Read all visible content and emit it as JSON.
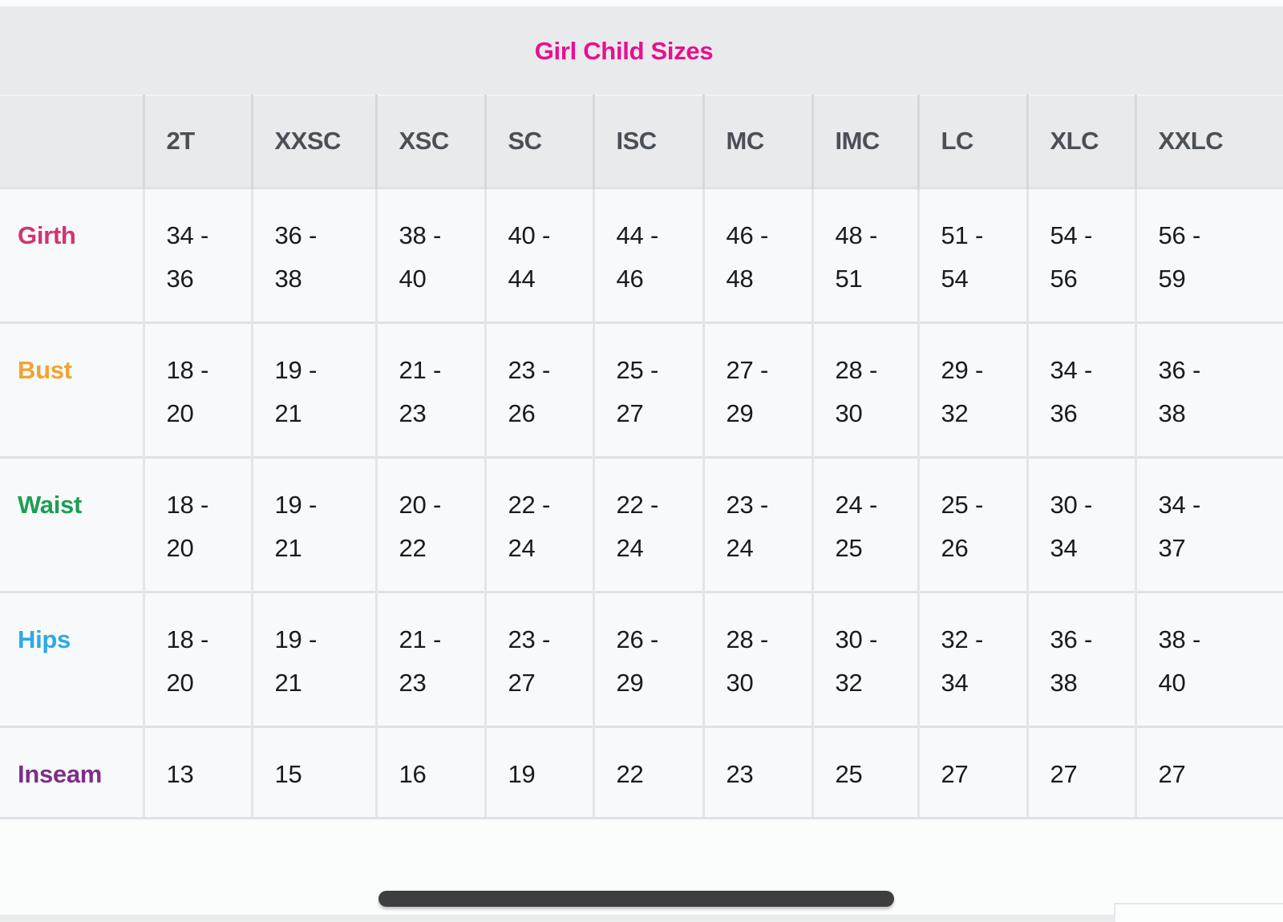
{
  "table": {
    "title": "Girl Child Sizes",
    "title_color": "#e71090",
    "columns": [
      "2T",
      "XXSC",
      "XSC",
      "SC",
      "ISC",
      "MC",
      "IMC",
      "LC",
      "XLC",
      "XXLC"
    ],
    "rows": [
      {
        "label": "Girth",
        "color": "#d13472",
        "values": [
          "34 - 36",
          "36 - 38",
          "38 - 40",
          "40 - 44",
          "44 - 46",
          "46 - 48",
          "48 - 51",
          "51 - 54",
          "54 - 56",
          "56 - 59"
        ]
      },
      {
        "label": "Bust",
        "color": "#f0a332",
        "values": [
          "18 - 20",
          "19 - 21",
          "21 - 23",
          "23 - 26",
          "25 - 27",
          "27 - 29",
          "28 - 30",
          "29 - 32",
          "34 - 36",
          "36 - 38"
        ]
      },
      {
        "label": "Waist",
        "color": "#1d9e52",
        "values": [
          "18 - 20",
          "19 - 21",
          "20 - 22",
          "22 - 24",
          "22 - 24",
          "23 - 24",
          "24 - 25",
          "25 - 26",
          "30 - 34",
          "34 - 37"
        ]
      },
      {
        "label": "Hips",
        "color": "#2aabe3",
        "values": [
          "18 - 20",
          "19 - 21",
          "21 - 23",
          "23 - 27",
          "26 - 29",
          "28 - 30",
          "30 - 32",
          "32 - 34",
          "36 - 38",
          "38 - 40"
        ]
      },
      {
        "label": "Inseam",
        "color": "#7d2e88",
        "values": [
          "13",
          "15",
          "16",
          "19",
          "22",
          "23",
          "25",
          "27",
          "27",
          "27"
        ]
      }
    ]
  },
  "colors": {
    "header_band": "#e8eaec",
    "header_text": "#4a5056",
    "cell_background": "#f8f9fa",
    "value_text": "#191b1d",
    "scrollbar_thumb": "#3e3e40",
    "bottom_band": "#e9ebee"
  }
}
